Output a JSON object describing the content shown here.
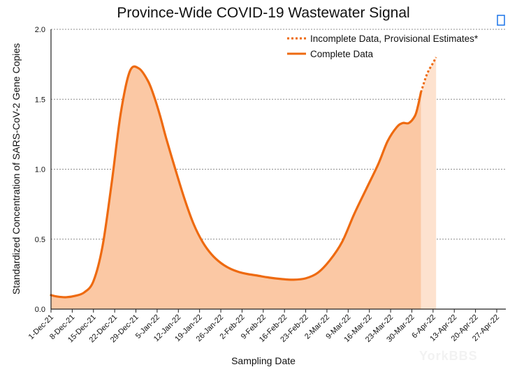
{
  "chart_data": {
    "type": "area",
    "title": "Province-Wide COVID-19 Wastewater Signal",
    "xlabel": "Sampling Date",
    "ylabel": "Standardized Concentration of SARS-CoV-2 Gene Copies",
    "ylim": [
      0,
      2.0
    ],
    "yticks": [
      "0.0",
      "0.5",
      "1.0",
      "1.5",
      "2.0"
    ],
    "x_tick_labels": [
      "1-Dec-21",
      "8-Dec-21",
      "15-Dec-21",
      "22-Dec-21",
      "29-Dec-21",
      "5-Jan-22",
      "12-Jan-22",
      "19-Jan-22",
      "26-Jan-22",
      "2-Feb-22",
      "9-Feb-22",
      "16-Feb-22",
      "23-Feb-22",
      "2-Mar-22",
      "9-Mar-22",
      "16-Mar-22",
      "23-Mar-22",
      "30-Mar-22",
      "6-Apr-22",
      "13-Apr-22",
      "20-Apr-22",
      "27-Apr-22"
    ],
    "x_unit": "days since 1-Dec-21",
    "x_max_days": 150,
    "grid": true,
    "legend": {
      "position": "top-right",
      "entries": [
        "Incomplete Data, Provisional Estimates*",
        "Complete Data"
      ]
    },
    "series": [
      {
        "name": "Complete Data",
        "style": "solid",
        "x": [
          0,
          2,
          5,
          8,
          11,
          14,
          17,
          20,
          23,
          26,
          29,
          32,
          34,
          36,
          38,
          41,
          44,
          47,
          50,
          53,
          56,
          59,
          62,
          65,
          68,
          72,
          76,
          80,
          84,
          88,
          92,
          96,
          100,
          104,
          108,
          111,
          114,
          116,
          118,
          120,
          121,
          122
        ],
        "values": [
          0.1,
          0.09,
          0.085,
          0.095,
          0.12,
          0.2,
          0.45,
          0.9,
          1.4,
          1.7,
          1.72,
          1.63,
          1.52,
          1.38,
          1.22,
          1.0,
          0.79,
          0.61,
          0.48,
          0.39,
          0.33,
          0.29,
          0.265,
          0.25,
          0.24,
          0.225,
          0.215,
          0.21,
          0.22,
          0.26,
          0.35,
          0.48,
          0.68,
          0.86,
          1.04,
          1.2,
          1.3,
          1.33,
          1.33,
          1.38,
          1.45,
          1.55
        ]
      },
      {
        "name": "Incomplete Data, Provisional Estimates*",
        "style": "dotted",
        "x": [
          122,
          124,
          126,
          127
        ],
        "values": [
          1.55,
          1.68,
          1.76,
          1.8
        ]
      }
    ],
    "colors": {
      "line": "#ee6a10",
      "fill_complete": "#fbc8a4",
      "fill_provisional": "#fde2cf"
    }
  },
  "watermark": "YorkBBS"
}
